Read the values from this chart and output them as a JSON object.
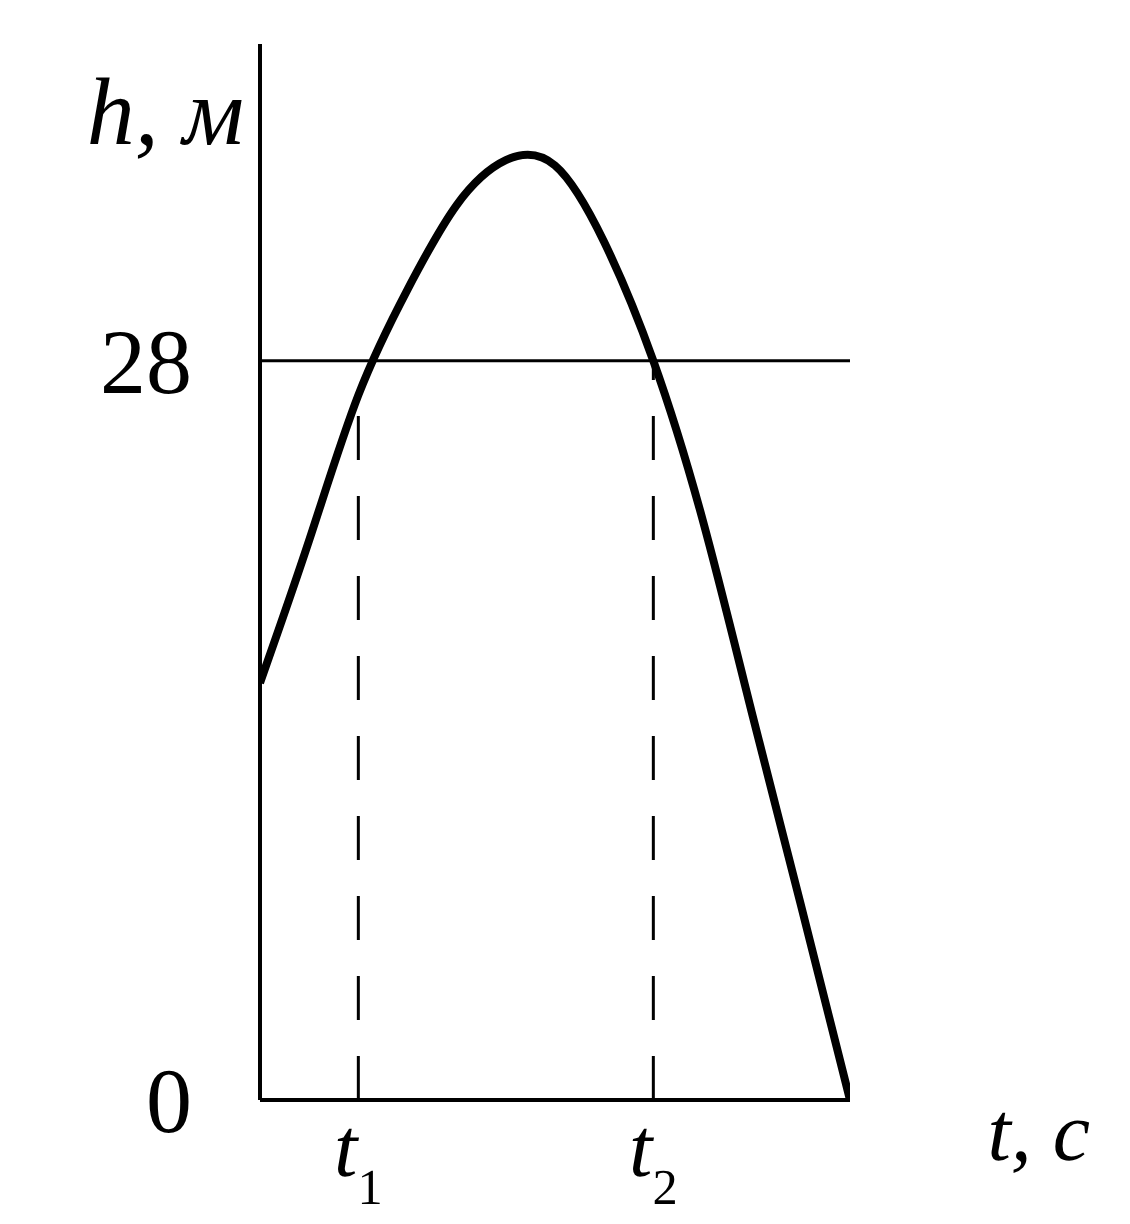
{
  "chart_data": {
    "type": "line",
    "xlabel": "t, c",
    "ylabel": "h, м",
    "categories": [
      null,
      null,
      "t$_{1}$",
      null,
      null,
      null,
      null,
      null,
      "t$_{2}$",
      null,
      null,
      null,
      null
    ],
    "series": [
      {
        "color": "#000000",
        "values": [
          15.8,
          21.2,
          26.7,
          30.7,
          33.9,
          35.6,
          35.4,
          32.5,
          28,
          22.0,
          14.7,
          7.4,
          0
        ]
      }
    ],
    "ylim": [
      0,
      40
    ],
    "yticks": [
      0,
      28
    ],
    "ref_lines": [
      {
        "axis": "y",
        "value": 28,
        "color": "#000000",
        "line_style": "solid"
      },
      {
        "axis": "x",
        "value": "t$_{1}$",
        "color": "#000000",
        "line_style": "dashed"
      },
      {
        "axis": "x",
        "value": "t$_{2}$",
        "color": "#000000",
        "line_style": "dashed"
      }
    ],
    "grid": false,
    "marker": "none",
    "line_style": "solid"
  }
}
